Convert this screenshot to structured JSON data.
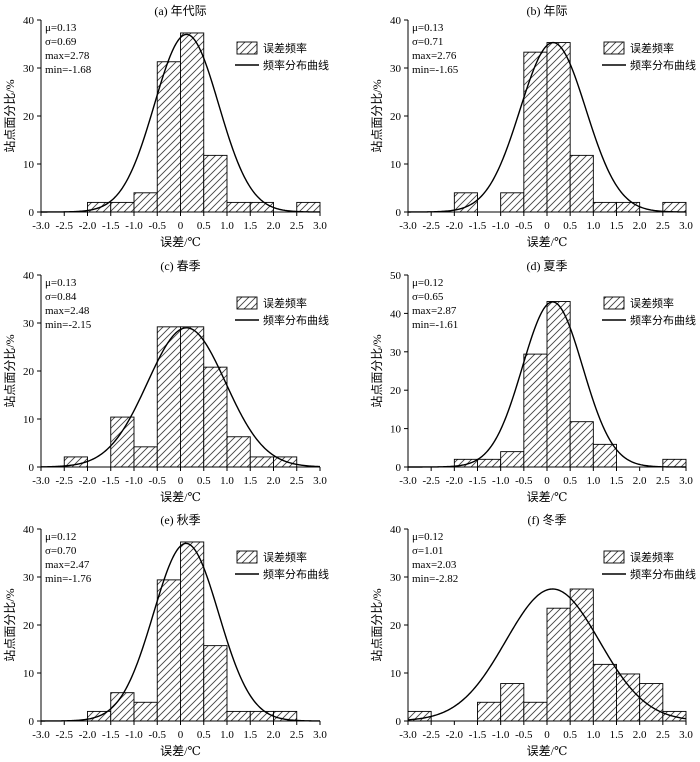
{
  "colors": {
    "bar_fill": "#ffffff",
    "hatch": "#444444",
    "stroke": "#000000",
    "curve": "#000000"
  },
  "legend": {
    "bar_label": "误差频率",
    "curve_label": "频率分布曲线"
  },
  "chart_data": [
    {
      "type": "bar",
      "title": "(a) 年代际",
      "xlabel": "误差/℃",
      "ylabel": "站点面分比/%",
      "xlim": [
        -3.0,
        3.0
      ],
      "ylim": [
        0,
        40
      ],
      "xticks": [
        "-3.0",
        "-2.5",
        "-2.0",
        "-1.5",
        "-1.0",
        "-0.5",
        "0",
        "0.5",
        "1.0",
        "1.5",
        "2.0",
        "2.5",
        "3.0"
      ],
      "yticks": [
        "0",
        "10",
        "20",
        "30",
        "40"
      ],
      "bins": [
        -2.0,
        -1.5,
        -1.0,
        -0.5,
        0.0,
        0.5,
        1.0,
        1.5,
        2.5
      ],
      "values": [
        2,
        2,
        4,
        31.3,
        37.3,
        11.8,
        2,
        2,
        2
      ],
      "stats": [
        "μ=0.13",
        "σ=0.69",
        "max=2.78",
        "min=-1.68"
      ],
      "curve": {
        "mu": 0.13,
        "sigma": 0.69,
        "peak": 37
      },
      "legend_position": "top-right",
      "grid": false
    },
    {
      "type": "bar",
      "title": "(b) 年际",
      "xlabel": "误差/℃",
      "ylabel": "站点面分比/%",
      "xlim": [
        -3.0,
        3.0
      ],
      "ylim": [
        0,
        40
      ],
      "xticks": [
        "-3.0",
        "-2.5",
        "-2.0",
        "-1.5",
        "-1.0",
        "-0.5",
        "0",
        "0.5",
        "1.0",
        "1.5",
        "2.0",
        "2.5",
        "3.0"
      ],
      "yticks": [
        "0",
        "10",
        "20",
        "30",
        "40"
      ],
      "bins": [
        -2.0,
        -1.0,
        -0.5,
        0.0,
        0.5,
        1.0,
        1.5,
        2.5
      ],
      "values": [
        4,
        4,
        33.3,
        35.3,
        11.8,
        2,
        2,
        2
      ],
      "stats": [
        "μ=0.13",
        "σ=0.71",
        "max=2.76",
        "min=-1.65"
      ],
      "curve": {
        "mu": 0.13,
        "sigma": 0.71,
        "peak": 35.3
      },
      "legend_position": "top-right",
      "grid": false
    },
    {
      "type": "bar",
      "title": "(c) 春季",
      "xlabel": "误差/℃",
      "ylabel": "站点面分比/%",
      "xlim": [
        -3.0,
        3.0
      ],
      "ylim": [
        0,
        40
      ],
      "xticks": [
        "-3.0",
        "-2.5",
        "-2.0",
        "-1.5",
        "-1.0",
        "-0.5",
        "0",
        "0.5",
        "1.0",
        "1.5",
        "2.0",
        "2.5",
        "3.0"
      ],
      "yticks": [
        "0",
        "10",
        "20",
        "30",
        "40"
      ],
      "bins": [
        -2.5,
        -1.5,
        -1.0,
        -0.5,
        0.0,
        0.5,
        1.0,
        1.5,
        2.0
      ],
      "values": [
        2.1,
        10.4,
        4.2,
        29.2,
        29.2,
        20.8,
        6.3,
        2.1,
        2.1
      ],
      "stats": [
        "μ=0.13",
        "σ=0.84",
        "max=2.48",
        "min=-2.15"
      ],
      "curve": {
        "mu": 0.13,
        "sigma": 0.84,
        "peak": 29
      },
      "legend_position": "top-right",
      "grid": false
    },
    {
      "type": "bar",
      "title": "(d) 夏季",
      "xlabel": "误差/℃",
      "ylabel": "站点面分比/%",
      "xlim": [
        -3.0,
        3.0
      ],
      "ylim": [
        0,
        50
      ],
      "xticks": [
        "-3.0",
        "-2.5",
        "-2.0",
        "-1.5",
        "-1.0",
        "-0.5",
        "0",
        "0.5",
        "1.0",
        "1.5",
        "2.0",
        "2.5",
        "3.0"
      ],
      "yticks": [
        "0",
        "10",
        "20",
        "30",
        "40",
        "50"
      ],
      "bins": [
        -2.0,
        -1.5,
        -1.0,
        -0.5,
        0.0,
        0.5,
        1.0,
        2.5
      ],
      "values": [
        2,
        2,
        4,
        29.4,
        43.1,
        11.8,
        5.9,
        2
      ],
      "stats": [
        "μ=0.12",
        "σ=0.65",
        "max=2.87",
        "min=-1.61"
      ],
      "curve": {
        "mu": 0.12,
        "sigma": 0.65,
        "peak": 43
      },
      "legend_position": "top-right",
      "grid": false
    },
    {
      "type": "bar",
      "title": "(e) 秋季",
      "xlabel": "误差/℃",
      "ylabel": "站点面分比/%",
      "xlim": [
        -3.0,
        3.0
      ],
      "ylim": [
        0,
        40
      ],
      "xticks": [
        "-3.0",
        "-2.5",
        "-2.0",
        "-1.5",
        "-1.0",
        "-0.5",
        "0",
        "0.5",
        "1.0",
        "1.5",
        "2.0",
        "2.5",
        "3.0"
      ],
      "yticks": [
        "0",
        "10",
        "20",
        "30",
        "40"
      ],
      "bins": [
        -2.0,
        -1.5,
        -1.0,
        -0.5,
        0.0,
        0.5,
        1.0,
        1.5,
        2.0
      ],
      "values": [
        2,
        5.9,
        3.9,
        29.4,
        37.3,
        15.7,
        2,
        2,
        2
      ],
      "stats": [
        "μ=0.12",
        "σ=0.70",
        "max=2.47",
        "min=-1.76"
      ],
      "curve": {
        "mu": 0.12,
        "sigma": 0.7,
        "peak": 37
      },
      "legend_position": "top-right",
      "grid": false
    },
    {
      "type": "bar",
      "title": "(f) 冬季",
      "xlabel": "误差/℃",
      "ylabel": "站点面分比/%",
      "xlim": [
        -3.0,
        3.0
      ],
      "ylim": [
        0,
        40
      ],
      "xticks": [
        "-3.0",
        "-2.5",
        "-2.0",
        "-1.5",
        "-1.0",
        "-0.5",
        "0",
        "0.5",
        "1.0",
        "1.5",
        "2.0",
        "2.5",
        "3.0"
      ],
      "yticks": [
        "0",
        "10",
        "20",
        "30",
        "40"
      ],
      "bins": [
        -3.0,
        -1.5,
        -1.0,
        -0.5,
        0.0,
        0.5,
        1.0,
        1.5,
        2.0,
        2.5
      ],
      "values": [
        2,
        3.9,
        7.8,
        3.9,
        23.5,
        27.5,
        11.8,
        9.8,
        7.8,
        2
      ],
      "stats": [
        "μ=0.12",
        "σ=1.01",
        "max=2.03",
        "min=-2.82"
      ],
      "curve": {
        "mu": 0.12,
        "sigma": 1.01,
        "peak": 27.5
      },
      "legend_position": "top-right",
      "grid": false
    }
  ]
}
